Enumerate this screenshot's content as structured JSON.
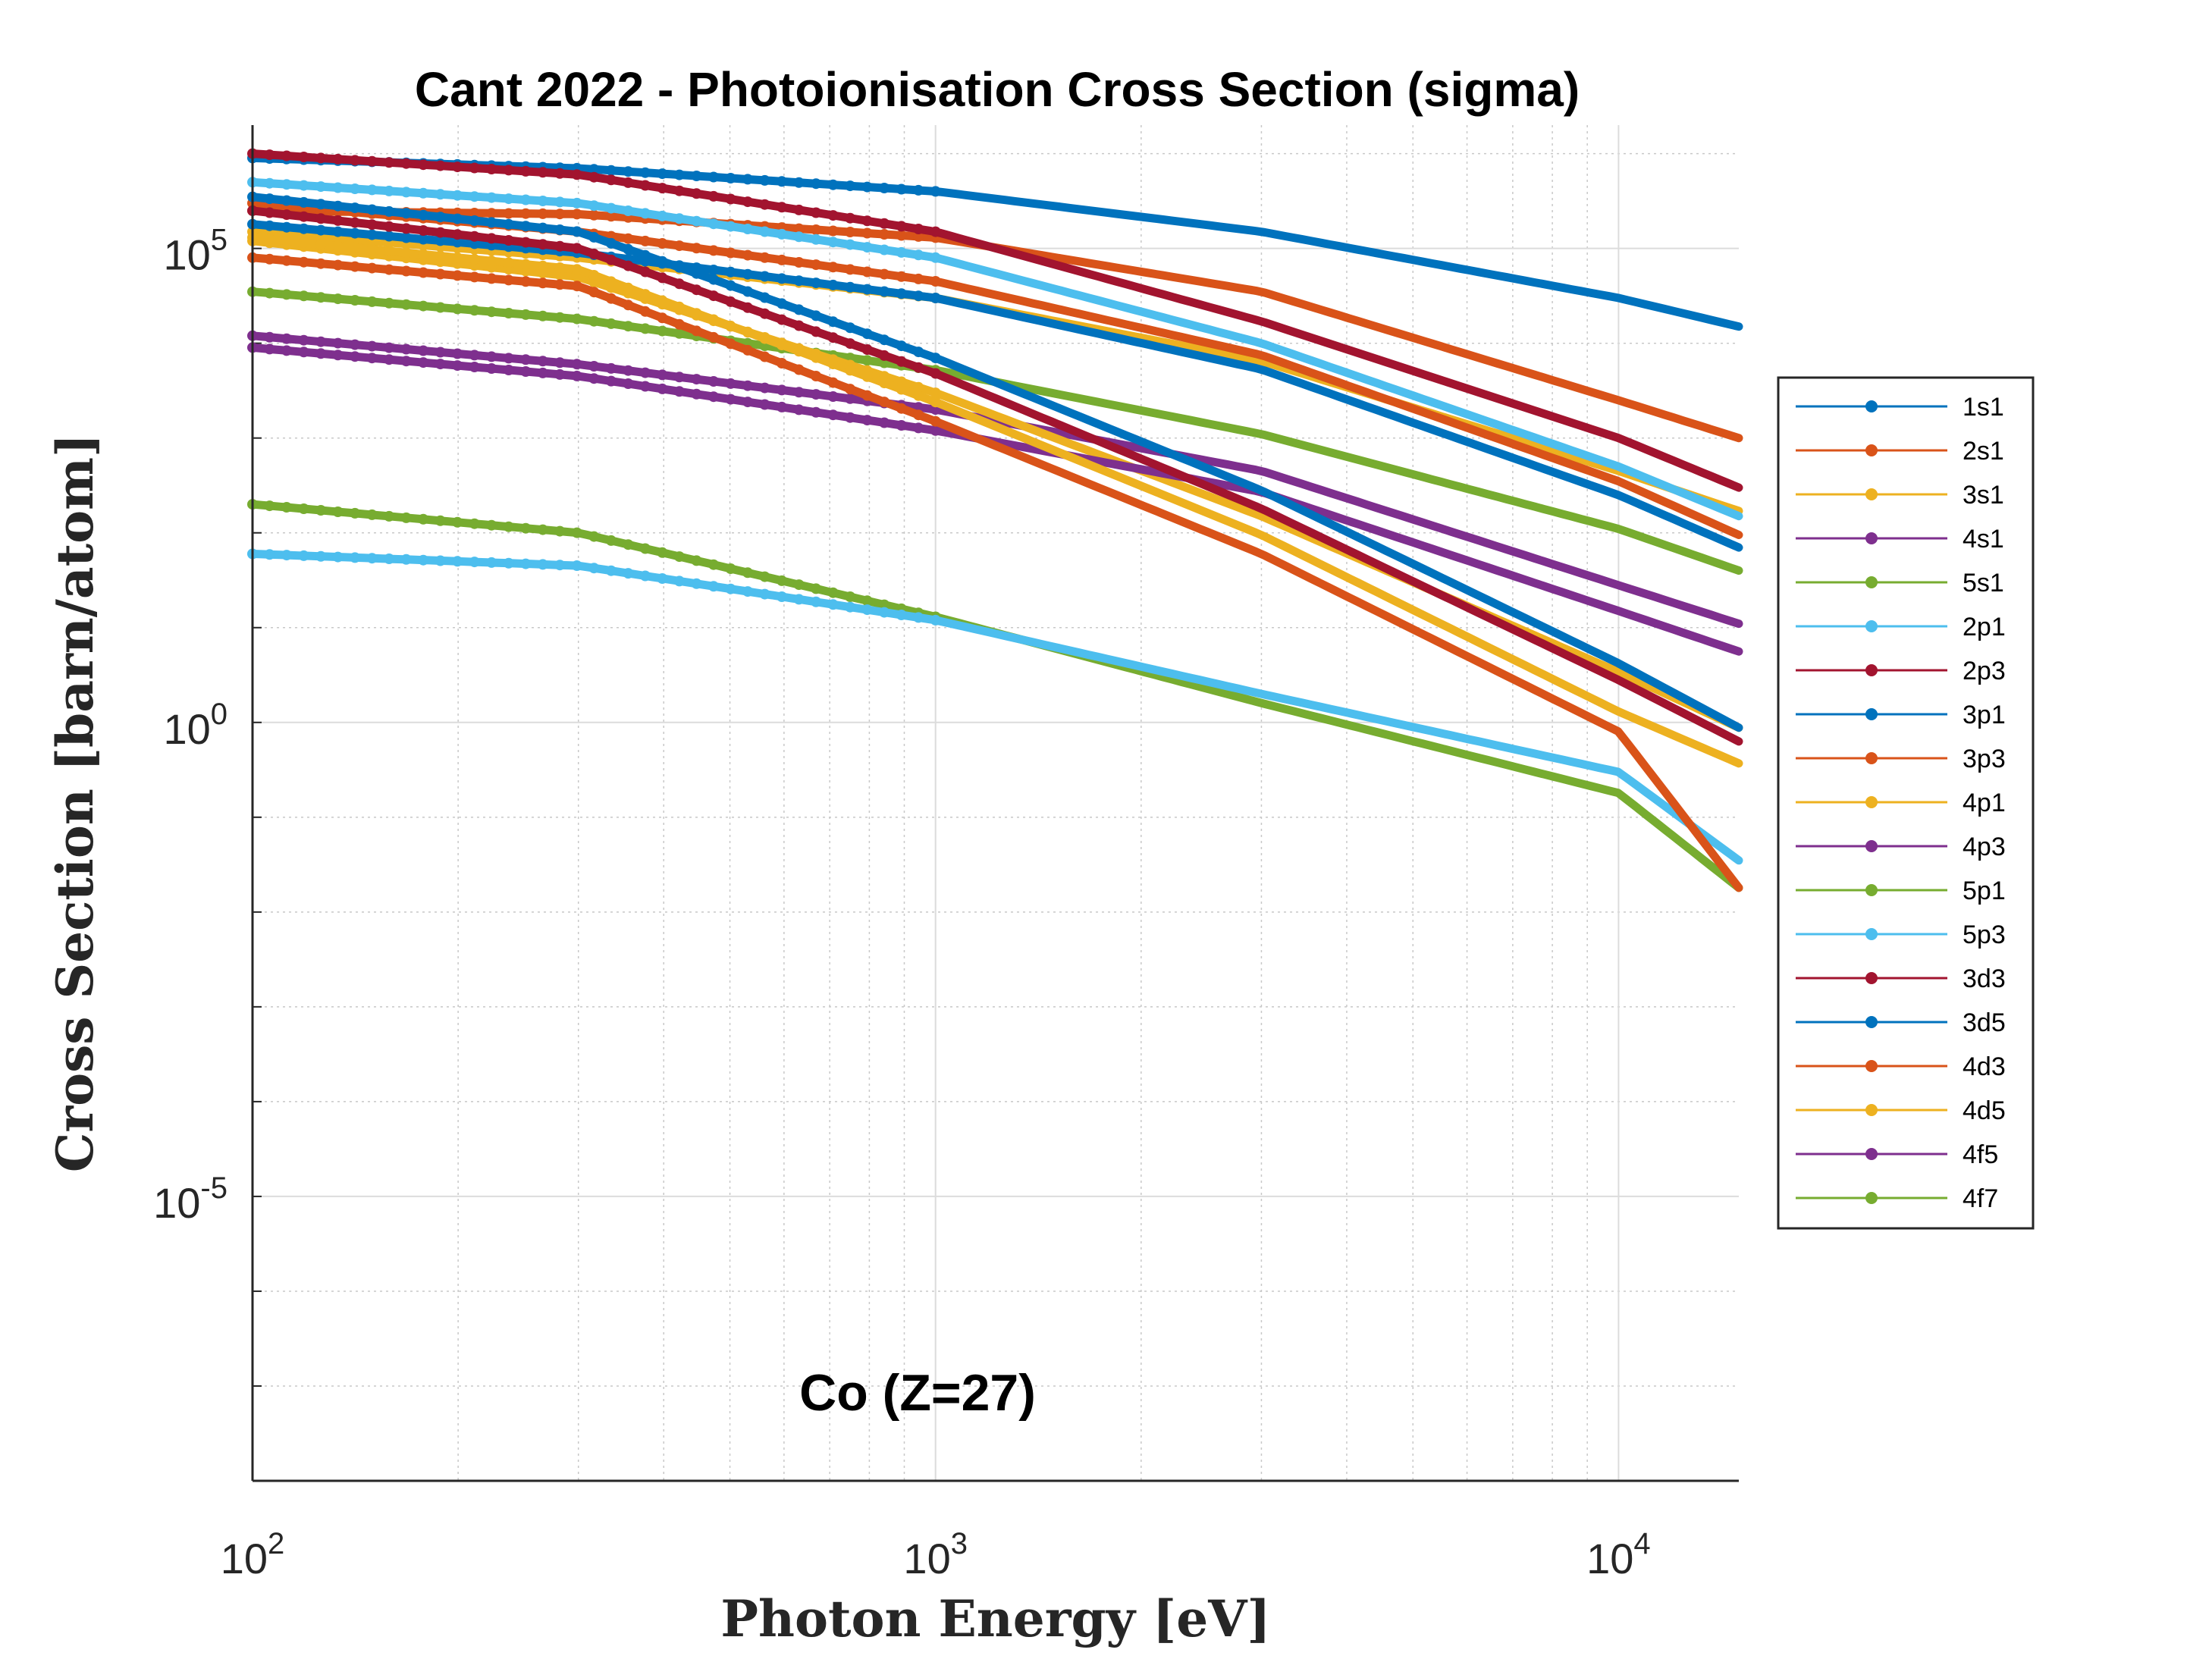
{
  "chart_data": {
    "type": "line",
    "title": "Cant 2022 - Photoionisation Cross Section (sigma)",
    "xlabel": "Photon Energy [eV]",
    "ylabel": "Cross Section [barn/atom]",
    "xscale": "log",
    "yscale": "log",
    "xlim": [
      100,
      15000
    ],
    "ylim": [
      1e-08,
      2000000.0
    ],
    "xticks": [
      {
        "base": "10",
        "exp": "2",
        "value": 100
      },
      {
        "base": "10",
        "exp": "3",
        "value": 1000
      },
      {
        "base": "10",
        "exp": "4",
        "value": 10000
      }
    ],
    "yticks": [
      {
        "base": "10",
        "exp": "-5",
        "value": 1e-05
      },
      {
        "base": "10",
        "exp": "0",
        "value": 1
      },
      {
        "base": "10",
        "exp": "5",
        "value": 100000
      }
    ],
    "grid": true,
    "legend_location": "outside-right",
    "annotation": "Co (Z=27)",
    "series": [
      {
        "name": "1s1",
        "color": "#0072BD",
        "x": [
          100,
          300,
          1000,
          3000,
          10000,
          15000
        ],
        "y": [
          900000,
          700000,
          400000,
          150000,
          30000,
          15000
        ]
      },
      {
        "name": "2s1",
        "color": "#D95319",
        "x": [
          100,
          300,
          1000,
          3000,
          10000,
          15000
        ],
        "y": [
          250000,
          230000,
          130000,
          35000,
          2500,
          1000
        ]
      },
      {
        "name": "3s1",
        "color": "#EDB120",
        "x": [
          100,
          300,
          1000,
          3000,
          10000,
          15000
        ],
        "y": [
          150000,
          80000,
          30000,
          6500,
          450,
          170
        ]
      },
      {
        "name": "4s1",
        "color": "#7E2F8E",
        "x": [
          100,
          300,
          1000,
          3000,
          10000,
          15000
        ],
        "y": [
          12000,
          6000,
          2000,
          450,
          28,
          11
        ]
      },
      {
        "name": "5s1",
        "color": "#77AC30",
        "x": [
          100,
          300,
          1000,
          3000,
          10000,
          15000
        ],
        "y": [
          35000,
          18000,
          5200,
          1100,
          110,
          40
        ]
      },
      {
        "name": "2p1",
        "color": "#4DBEEE",
        "x": [
          100,
          300,
          1000,
          3000,
          10000,
          15000
        ],
        "y": [
          500000,
          300000,
          80000,
          10000,
          500,
          150
        ]
      },
      {
        "name": "2p3",
        "color": "#A2142F",
        "x": [
          100,
          300,
          1000,
          3000,
          10000,
          15000
        ],
        "y": [
          1000000,
          600000,
          150000,
          17000,
          1000,
          300
        ]
      },
      {
        "name": "3p1",
        "color": "#0072BD",
        "x": [
          100,
          300,
          1000,
          3000,
          10000,
          15000
        ],
        "y": [
          180000,
          90000,
          30000,
          5300,
          250,
          70
        ]
      },
      {
        "name": "3p3",
        "color": "#D95319",
        "x": [
          100,
          300,
          1000,
          3000,
          10000,
          15000
        ],
        "y": [
          300000,
          150000,
          45000,
          7500,
          350,
          95
        ]
      },
      {
        "name": "4p1",
        "color": "#EDB120",
        "x": [
          100,
          300,
          1000,
          3000,
          10000,
          15000
        ],
        "y": [
          120000,
          50000,
          3000,
          150,
          3.4,
          0.88
        ]
      },
      {
        "name": "4p3",
        "color": "#7E2F8E",
        "x": [
          100,
          300,
          1000,
          3000,
          10000,
          15000
        ],
        "y": [
          9000,
          4500,
          1200,
          270,
          15,
          5.6
        ]
      },
      {
        "name": "5p1",
        "color": "#77AC30",
        "x": [
          100,
          300,
          1000,
          3000,
          10000,
          15000
        ],
        "y": [
          200,
          100,
          13,
          1.6,
          0.18,
          0.018
        ]
      },
      {
        "name": "5p3",
        "color": "#4DBEEE",
        "x": [
          100,
          300,
          1000,
          3000,
          10000,
          15000
        ],
        "y": [
          60,
          45,
          12,
          2.0,
          0.3,
          0.035
        ]
      },
      {
        "name": "3d3",
        "color": "#A2142F",
        "x": [
          100,
          300,
          1000,
          3000,
          10000,
          15000
        ],
        "y": [
          250000,
          100000,
          4800,
          180,
          2.8,
          0.63
        ]
      },
      {
        "name": "3d5",
        "color": "#0072BD",
        "x": [
          100,
          300,
          1000,
          3000,
          10000,
          15000
        ],
        "y": [
          350000,
          150000,
          7000,
          280,
          4.2,
          0.88
        ]
      },
      {
        "name": "4d3",
        "color": "#D95319",
        "x": [
          100,
          300,
          1000,
          3000,
          10000,
          15000
        ],
        "y": [
          80000,
          40000,
          1500,
          60,
          0.8,
          0.018
        ]
      },
      {
        "name": "4d5",
        "color": "#EDB120",
        "x": [
          100,
          300,
          1000,
          3000,
          10000,
          15000
        ],
        "y": [
          130000,
          60000,
          2400,
          95,
          1.3,
          0.37
        ]
      },
      {
        "name": "4f5",
        "color": "#7E2F8E",
        "x": [],
        "y": []
      },
      {
        "name": "4f7",
        "color": "#77AC30",
        "x": [],
        "y": []
      }
    ]
  }
}
